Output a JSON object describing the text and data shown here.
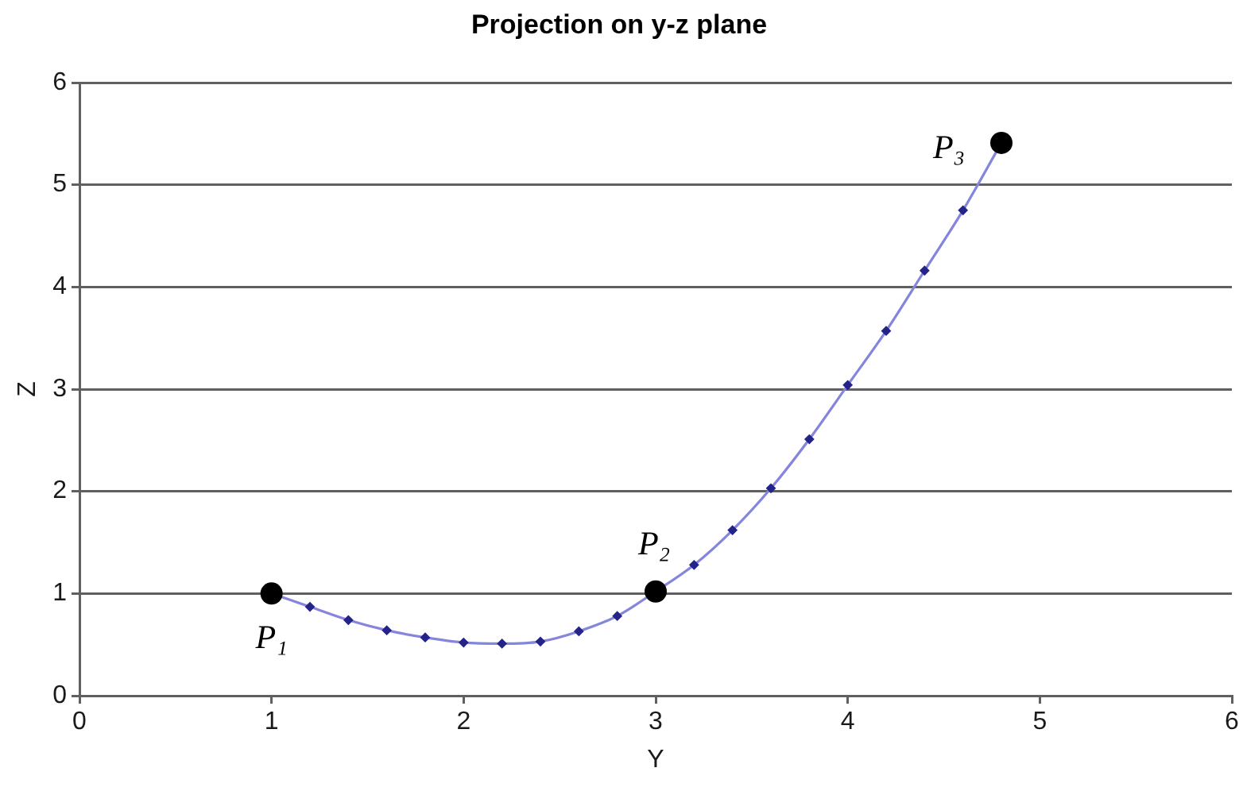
{
  "chart_data": {
    "type": "line",
    "title": "Projection on y-z plane",
    "xlabel": "Y",
    "ylabel": "Z",
    "xlim": [
      0,
      6
    ],
    "xticks": [
      0,
      1,
      2,
      3,
      4,
      5,
      6
    ],
    "ylim": [
      0,
      6
    ],
    "yticks": [
      0,
      1,
      2,
      3,
      4,
      5,
      6
    ],
    "grid": "y",
    "legend": false,
    "series": [
      {
        "color": "#8585dd",
        "marker": "none",
        "x": [
          1,
          1.2,
          1.4,
          1.6,
          1.8,
          2,
          2.2,
          2.4,
          2.6,
          2.8,
          3,
          3.2,
          3.4,
          3.6,
          3.8,
          4,
          4.2,
          4.4,
          4.6,
          4.8
        ],
        "values": [
          1,
          0.87,
          0.74,
          0.64,
          0.57,
          0.52,
          0.51,
          0.53,
          0.63,
          0.78,
          1.02,
          1.28,
          1.62,
          2.03,
          2.51,
          3.04,
          3.57,
          4.16,
          4.75,
          5.41
        ]
      },
      {
        "type": "scatter",
        "color": "#23238a",
        "marker": "diamond",
        "x": [
          1.2,
          1.4,
          1.6,
          1.8,
          2,
          2.2,
          2.4,
          2.6,
          2.8,
          3.2,
          3.4,
          3.6,
          3.8,
          4,
          4.2,
          4.4,
          4.6
        ],
        "values": [
          0.87,
          0.74,
          0.64,
          0.57,
          0.52,
          0.51,
          0.53,
          0.63,
          0.78,
          1.28,
          1.62,
          2.03,
          2.51,
          3.04,
          3.57,
          4.16,
          4.75
        ]
      },
      {
        "type": "scatter",
        "color": "#000000",
        "marker": "circle",
        "x": [
          1,
          3,
          4.8
        ],
        "values": [
          1,
          1.02,
          5.41
        ]
      }
    ],
    "annotations": [
      {
        "text": "P₁",
        "x": 1,
        "y": 1
      },
      {
        "text": "P₂",
        "x": 3,
        "y": 1.02
      },
      {
        "text": "P₃",
        "x": 4.8,
        "y": 5.41
      }
    ]
  }
}
